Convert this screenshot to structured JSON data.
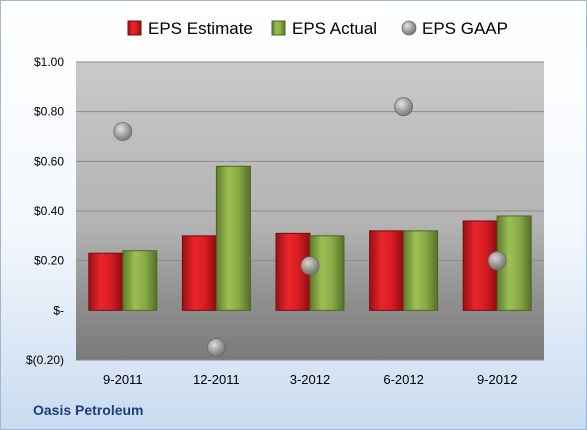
{
  "company": "Oasis Petroleum",
  "colors": {
    "estimate": "#c8161d",
    "actual": "#7f9f3f",
    "gaap": "#a6a6a6",
    "grid": "#8c8c8c",
    "company_text": "#1f3d7a"
  },
  "chart_data": {
    "type": "bar",
    "categories": [
      "9-2011",
      "12-2011",
      "3-2012",
      "6-2012",
      "9-2012"
    ],
    "series": [
      {
        "name": "EPS Estimate",
        "kind": "bar",
        "values": [
          0.23,
          0.3,
          0.31,
          0.32,
          0.36
        ]
      },
      {
        "name": "EPS Actual",
        "kind": "bar",
        "values": [
          0.24,
          0.58,
          0.3,
          0.32,
          0.38
        ]
      },
      {
        "name": "EPS GAAP",
        "kind": "scatter",
        "values": [
          0.72,
          -0.15,
          0.18,
          0.82,
          0.2
        ]
      }
    ],
    "y_ticks": [
      1.0,
      0.8,
      0.6,
      0.4,
      0.2,
      0.0,
      -0.2
    ],
    "y_tick_labels": [
      "$1.00",
      "$0.80",
      "$0.60",
      "$0.40",
      "$0.20",
      "$-",
      "$(0.20)"
    ],
    "ylim": [
      -0.2,
      1.0
    ],
    "grid": true,
    "legend_position": "top"
  }
}
